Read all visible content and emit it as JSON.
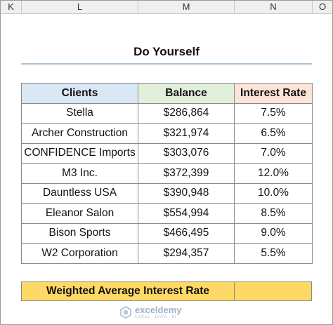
{
  "columns": [
    "K",
    "L",
    "M",
    "N",
    "O"
  ],
  "title": "Do Yourself",
  "table": {
    "headers": [
      "Clients",
      "Balance",
      "Interest Rate"
    ],
    "rows": [
      [
        "Stella",
        "$286,864",
        "7.5%"
      ],
      [
        "Archer Construction",
        "$321,974",
        "6.5%"
      ],
      [
        "CONFIDENCE Imports",
        "$303,076",
        "7.0%"
      ],
      [
        "M3 Inc.",
        "$372,399",
        "12.0%"
      ],
      [
        "Dauntless USA",
        "$390,948",
        "10.0%"
      ],
      [
        "Eleanor Salon",
        "$554,994",
        "8.5%"
      ],
      [
        "Bison Sports",
        "$466,495",
        "9.0%"
      ],
      [
        "W2 Corporation",
        "$294,357",
        "5.5%"
      ]
    ]
  },
  "weighted": {
    "label": "Weighted Average Interest Rate",
    "value": ""
  },
  "watermark": {
    "name": "exceldemy",
    "tagline": "EXCEL · DATA · BI"
  },
  "colors": {
    "header_clients": "#dae7f5",
    "header_balance": "#e2efda",
    "header_rate": "#fce4d6",
    "highlight": "#ffd966",
    "title_rule": "#a9c1dc"
  }
}
